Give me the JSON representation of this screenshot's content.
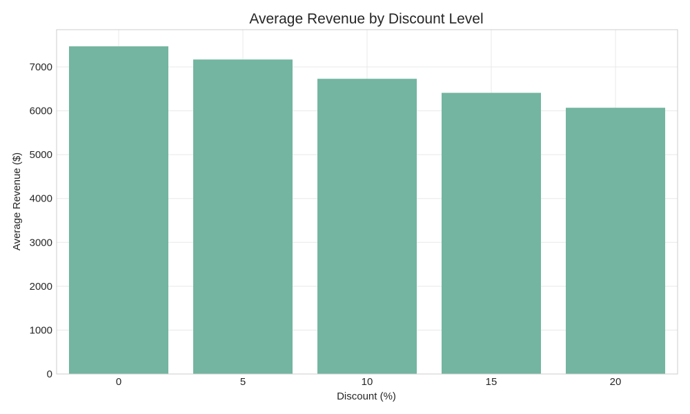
{
  "chart_data": {
    "type": "bar",
    "title": "Average Revenue by Discount Level",
    "xlabel": "Discount (%)",
    "ylabel": "Average Revenue ($)",
    "categories": [
      "0",
      "5",
      "10",
      "15",
      "20"
    ],
    "values": [
      7470,
      7170,
      6730,
      6410,
      6070
    ],
    "ylim": [
      0,
      7850
    ],
    "yticks": [
      0,
      1000,
      2000,
      3000,
      4000,
      5000,
      6000,
      7000
    ],
    "grid": true,
    "bar_color": "#73b5a0"
  }
}
